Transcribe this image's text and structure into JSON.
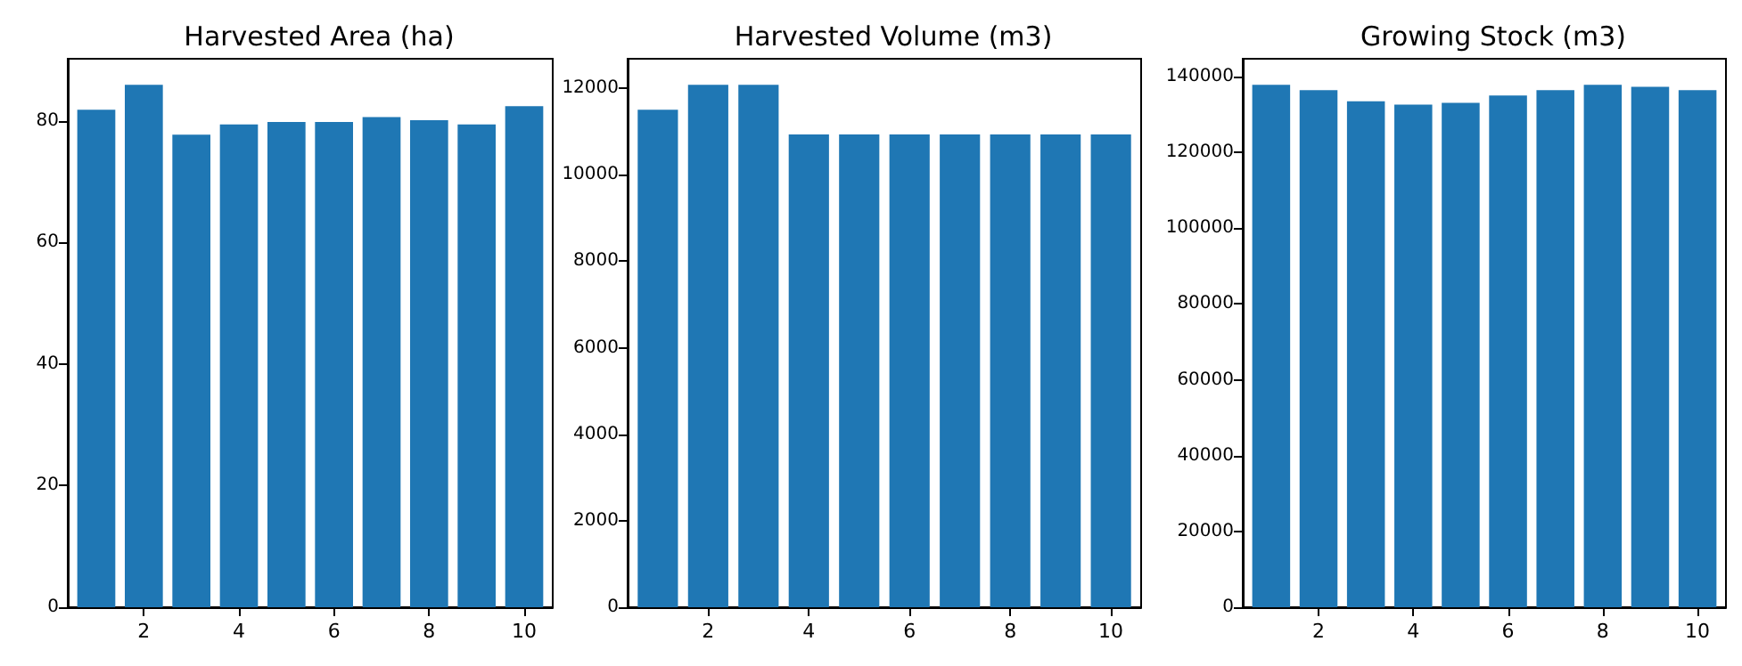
{
  "chart_data": [
    {
      "type": "bar",
      "title": "Harvested Area (ha)",
      "x": [
        1,
        2,
        3,
        4,
        5,
        6,
        7,
        8,
        9,
        10
      ],
      "values": [
        81.8,
        85.9,
        77.7,
        79.4,
        79.8,
        79.8,
        80.6,
        80.1,
        79.4,
        82.4
      ],
      "color": "#1f77b4",
      "xlim": [
        0.4,
        10.6
      ],
      "xticks": [
        2,
        4,
        6,
        8,
        10
      ],
      "ylim": [
        0,
        90.2
      ],
      "yticks": [
        0,
        20,
        40,
        60,
        80
      ],
      "grid": false
    },
    {
      "type": "bar",
      "title": "Harvested Volume (m3)",
      "x": [
        1,
        2,
        3,
        4,
        5,
        6,
        7,
        8,
        9,
        10
      ],
      "values": [
        11500,
        12080,
        12080,
        10930,
        10930,
        10930,
        10930,
        10930,
        10930,
        10930
      ],
      "color": "#1f77b4",
      "xlim": [
        0.4,
        10.6
      ],
      "xticks": [
        2,
        4,
        6,
        8,
        10
      ],
      "ylim": [
        0,
        12680
      ],
      "yticks": [
        0,
        2000,
        4000,
        6000,
        8000,
        10000,
        12000
      ],
      "grid": false
    },
    {
      "type": "bar",
      "title": "Growing Stock (m3)",
      "x": [
        1,
        2,
        3,
        4,
        5,
        6,
        7,
        8,
        9,
        10
      ],
      "values": [
        137800,
        136400,
        133500,
        132600,
        133100,
        135000,
        136400,
        137800,
        137300,
        136400
      ],
      "color": "#1f77b4",
      "xlim": [
        0.4,
        10.6
      ],
      "xticks": [
        2,
        4,
        6,
        8,
        10
      ],
      "ylim": [
        0,
        144700
      ],
      "yticks": [
        0,
        20000,
        40000,
        60000,
        80000,
        100000,
        120000,
        140000
      ],
      "grid": false
    }
  ]
}
